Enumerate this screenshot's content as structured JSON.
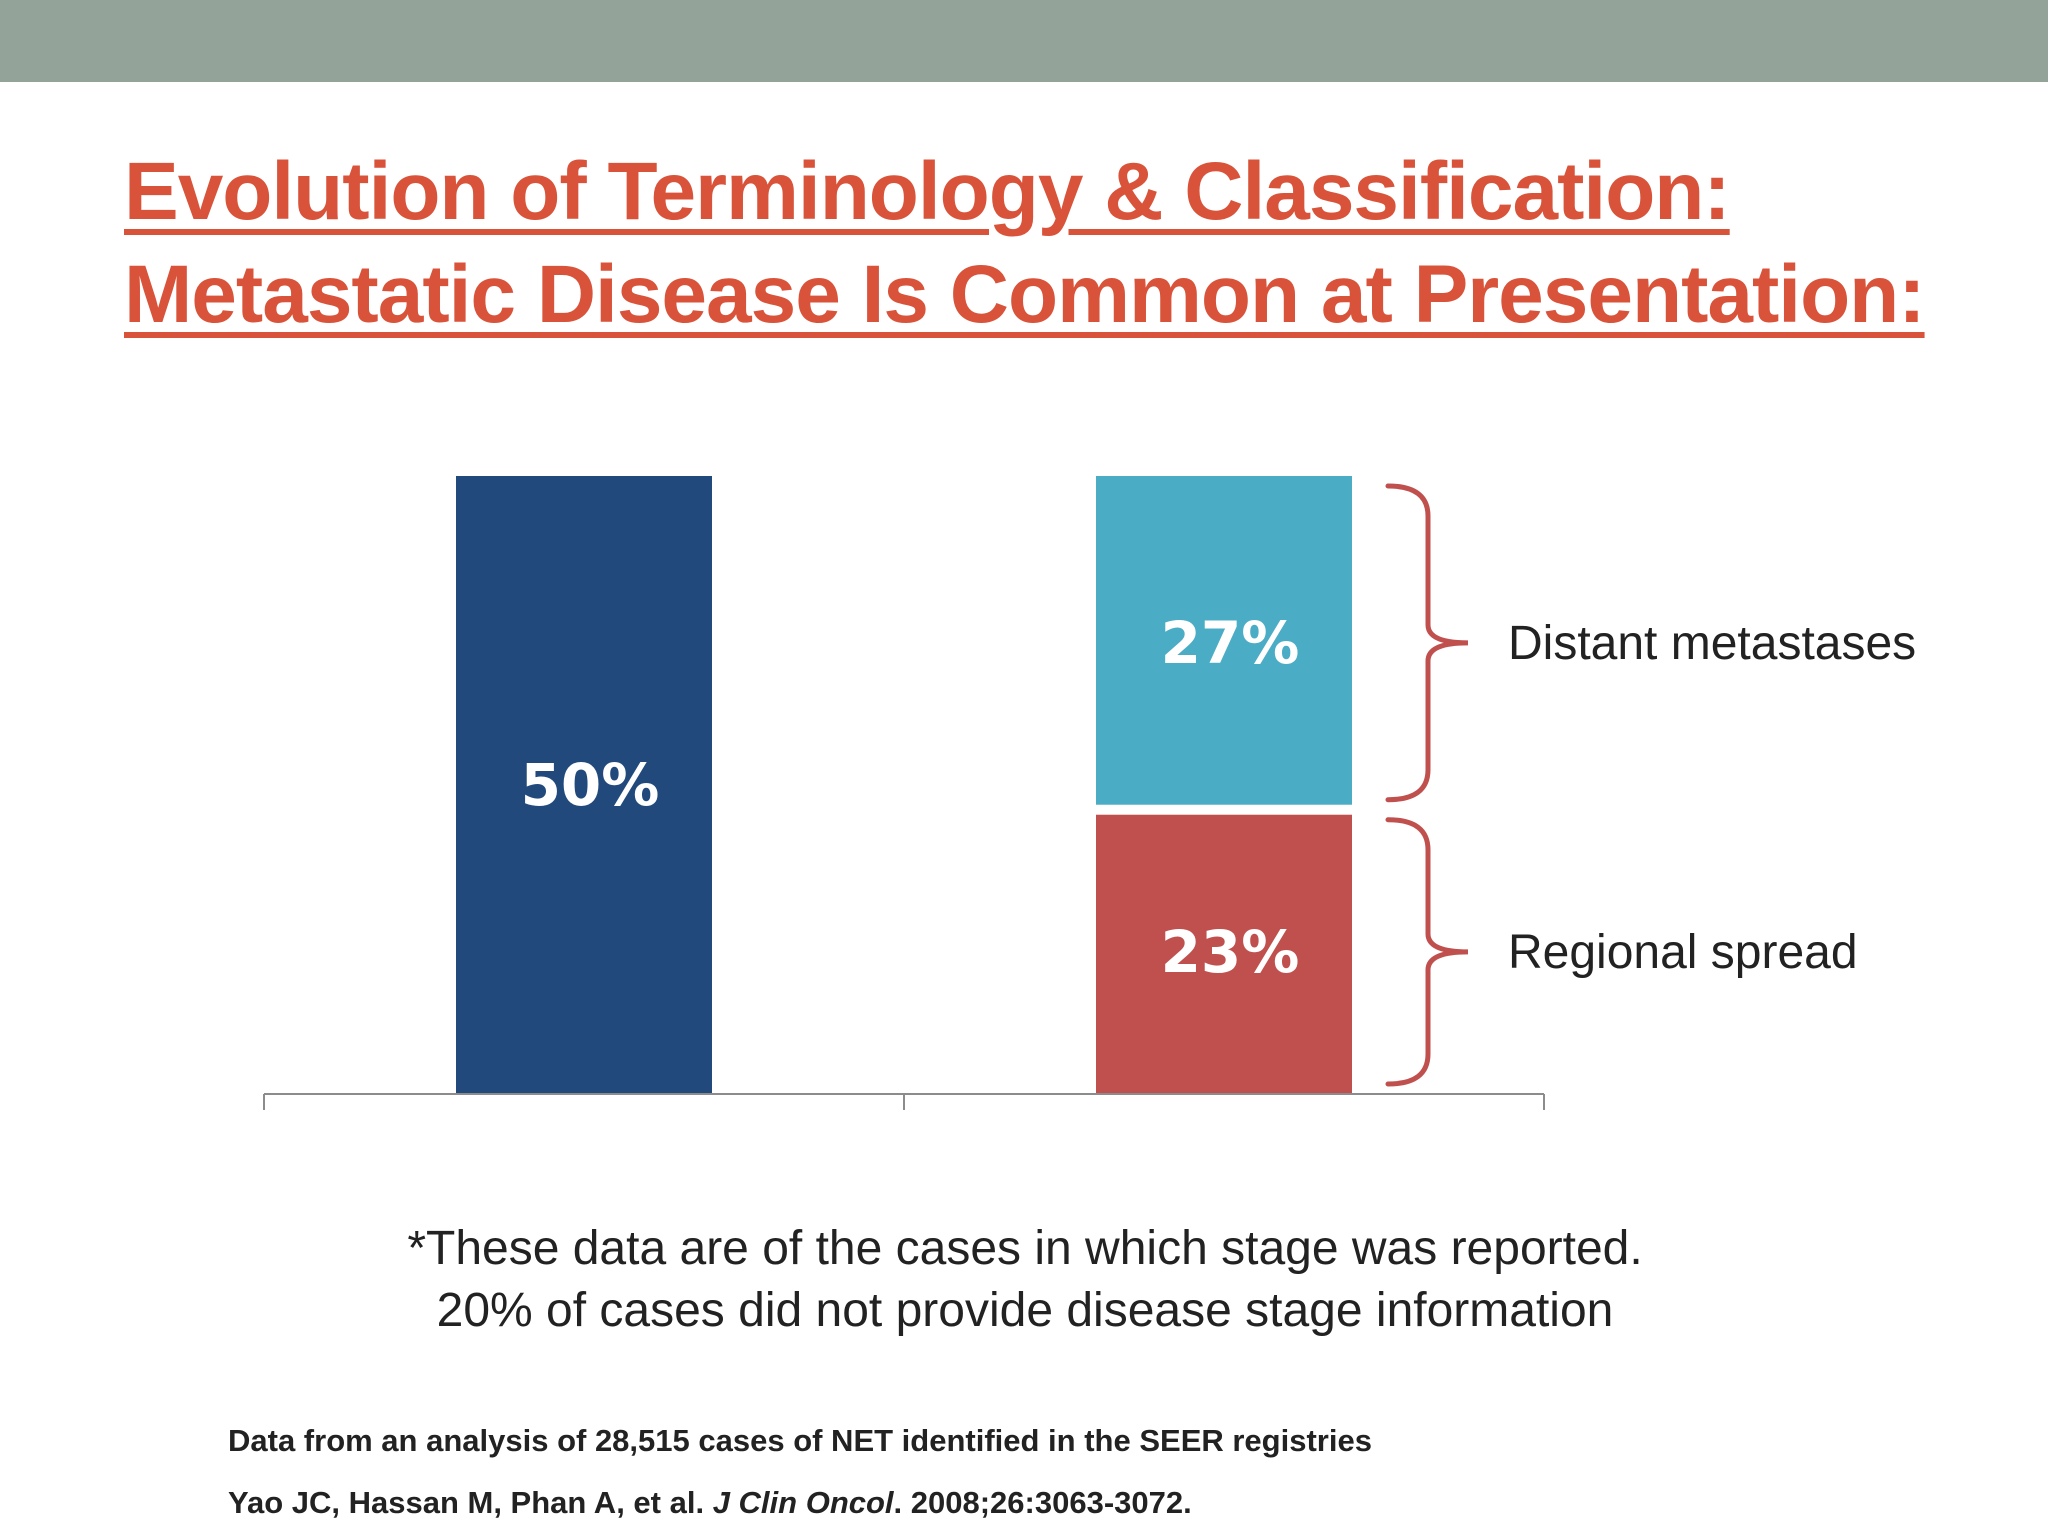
{
  "slide": {
    "header_bar_color": "#93a39a",
    "title_line1": "Evolution of Terminology & Classification:",
    "title_line2": "Metastatic Disease Is Common at Presentation:"
  },
  "chart_data": {
    "type": "bar",
    "ylim": [
      0,
      50
    ],
    "grid": false,
    "bars": [
      {
        "name": "",
        "segments": [
          {
            "value": 50,
            "label": "50%",
            "color": "#21497c"
          }
        ]
      },
      {
        "name": "",
        "segments": [
          {
            "value": 23,
            "label": "23%",
            "color": "#c0504d",
            "annotation": "Regional spread"
          },
          {
            "value": 27,
            "label": "27%",
            "color": "#4bacc6",
            "annotation": "Distant metastases"
          }
        ]
      }
    ],
    "brace_color": "#c0504d"
  },
  "footnote": {
    "line1": "*These data are of the cases in which stage was reported.",
    "line2": "20% of cases did not provide disease stage information"
  },
  "source": {
    "line1": "Data from an analysis of 28,515 cases of NET identified in the SEER registries",
    "line2_prefix": "Yao JC, Hassan M, Phan A, et al. ",
    "line2_journal": "J Clin Oncol",
    "line2_suffix": ". 2008;26:3063-3072."
  }
}
